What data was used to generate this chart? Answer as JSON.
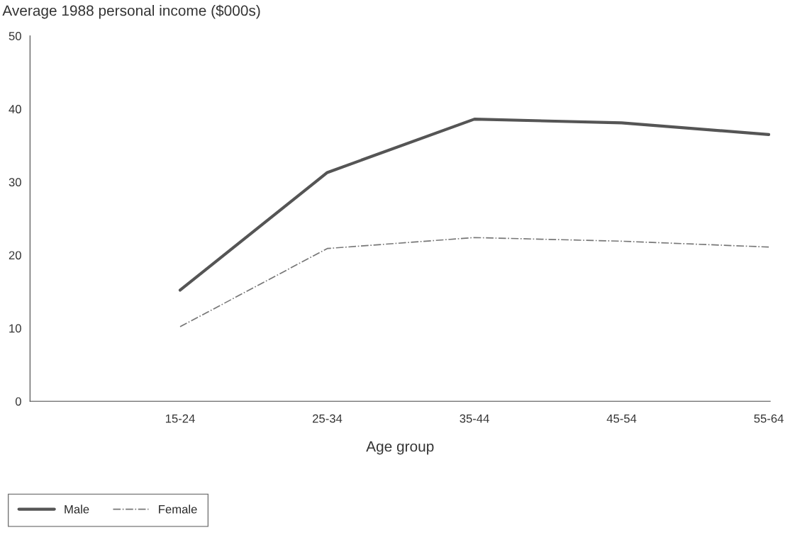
{
  "chart_data": {
    "type": "line",
    "ylabel": "Average 1988 personal income ($000s)",
    "xlabel": "Age group",
    "categories": [
      "15-24",
      "25-34",
      "35-44",
      "45-54",
      "55-64"
    ],
    "series": [
      {
        "name": "Male",
        "color": "#555555",
        "line_style": "solid",
        "values": [
          15.2,
          31.3,
          38.6,
          38.1,
          36.5
        ]
      },
      {
        "name": "Female",
        "color": "#777777",
        "line_style": "dashdot",
        "values": [
          10.2,
          20.9,
          22.4,
          21.9,
          21.1
        ]
      }
    ],
    "ylim": [
      0,
      50
    ],
    "yticks": [
      0,
      10,
      20,
      30,
      40,
      50
    ],
    "grid": false,
    "legend": "bottom left",
    "marker": "none"
  }
}
